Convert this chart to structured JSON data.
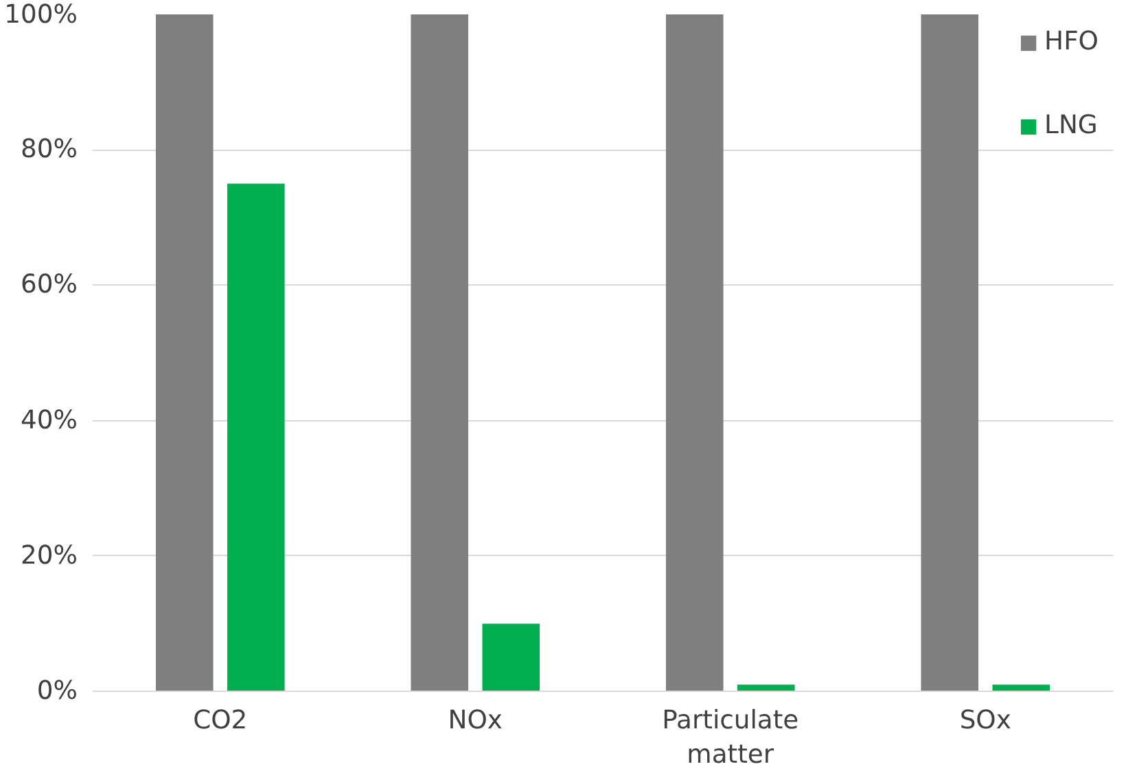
{
  "chart_data": {
    "type": "bar",
    "categories": [
      "CO2",
      "NOx",
      "Particulate matter",
      "SOx"
    ],
    "series": [
      {
        "name": "HFO",
        "color": "#7f7f7f",
        "values": [
          100,
          100,
          100,
          100
        ]
      },
      {
        "name": "LNG",
        "color": "#00b050",
        "values": [
          75,
          10,
          1,
          1
        ]
      }
    ],
    "ylim": [
      0,
      100
    ],
    "yticks": [
      {
        "value": 0,
        "label": "0%"
      },
      {
        "value": 20,
        "label": "20%"
      },
      {
        "value": 40,
        "label": "40%"
      },
      {
        "value": 60,
        "label": "60%"
      },
      {
        "value": 80,
        "label": "80%"
      },
      {
        "value": 100,
        "label": "100%"
      }
    ],
    "grid": "y",
    "legend": "top right"
  }
}
